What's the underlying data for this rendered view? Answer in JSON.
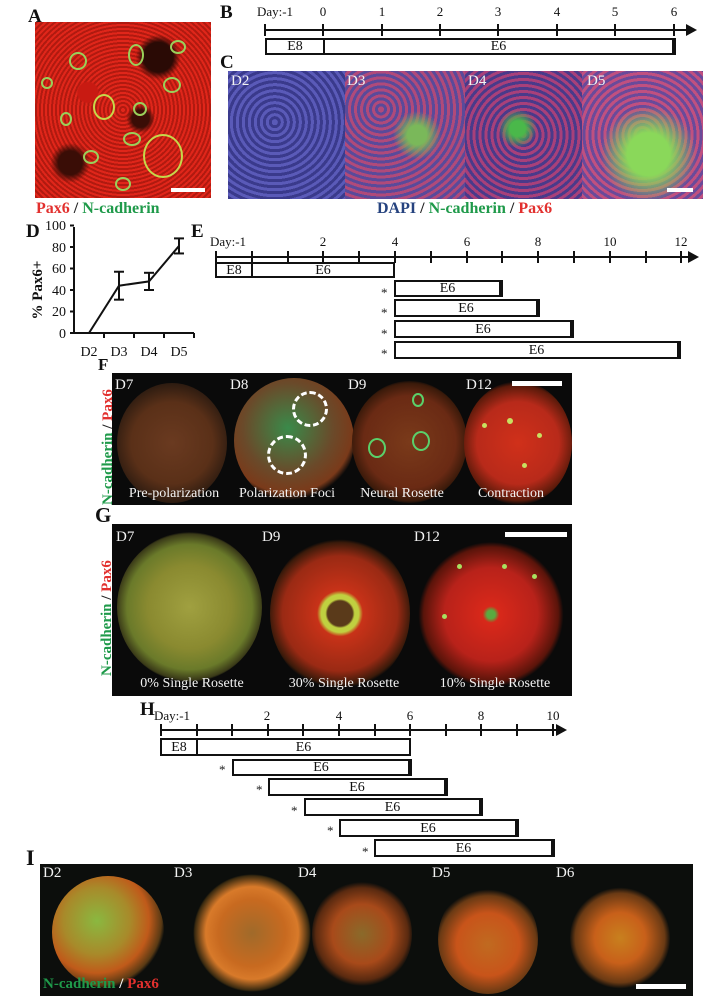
{
  "panels": {
    "A": {
      "label": "A",
      "caption": [
        {
          "text": "Pax6",
          "color": "red"
        },
        {
          "text": " / ",
          "color": "black"
        },
        {
          "text": "N-cadherin",
          "color": "green"
        }
      ]
    },
    "B": {
      "label": "B",
      "axis_ticks": [
        "Day:-1",
        "0",
        "1",
        "2",
        "3",
        "4",
        "5",
        "6"
      ],
      "bars": [
        {
          "label": "E8",
          "start": -1,
          "end": 0
        },
        {
          "label": "E6",
          "start": 0,
          "end": 6
        }
      ]
    },
    "C": {
      "label": "C",
      "tiles": [
        "D2",
        "D3",
        "D4",
        "D5"
      ],
      "caption": [
        {
          "text": "DAPI",
          "color": "blue"
        },
        {
          "text": " / ",
          "color": "black"
        },
        {
          "text": "N-cadherin",
          "color": "green"
        },
        {
          "text": " / ",
          "color": "black"
        },
        {
          "text": "Pax6",
          "color": "red"
        }
      ]
    },
    "D": {
      "label": "D"
    },
    "E": {
      "label": "E",
      "axis_ticks": [
        "Day:-1",
        "2",
        "4",
        "6",
        "8",
        "10",
        "12"
      ],
      "bars": [
        {
          "label": "E8",
          "start": -1,
          "end": 0,
          "star": false
        },
        {
          "label": "E6",
          "start": 0,
          "end": 4,
          "star": false
        },
        {
          "label": "E6",
          "start": 4,
          "end": 7,
          "star": true
        },
        {
          "label": "E6",
          "start": 4,
          "end": 8,
          "star": true
        },
        {
          "label": "E6",
          "start": 4,
          "end": 9,
          "star": true
        },
        {
          "label": "E6",
          "start": 4,
          "end": 12,
          "star": true
        }
      ],
      "star_symbol": "*"
    },
    "F": {
      "label": "F",
      "side_caption": [
        {
          "text": "N-cadherin",
          "color": "green"
        },
        {
          "text": " / ",
          "color": "black"
        },
        {
          "text": "Pax6",
          "color": "red"
        }
      ],
      "tiles": [
        {
          "day": "D7",
          "stage": "Pre-polarization"
        },
        {
          "day": "D8",
          "stage": "Polarization Foci"
        },
        {
          "day": "D9",
          "stage": "Neural Rosette"
        },
        {
          "day": "D12",
          "stage": "Contraction"
        }
      ]
    },
    "G": {
      "label": "G",
      "side_caption": [
        {
          "text": "N-cadherin",
          "color": "green"
        },
        {
          "text": " / ",
          "color": "black"
        },
        {
          "text": "Pax6",
          "color": "red"
        }
      ],
      "tiles": [
        {
          "day": "D7",
          "stage": "0% Single Rosette"
        },
        {
          "day": "D9",
          "stage": "30% Single Rosette"
        },
        {
          "day": "D12",
          "stage": "10% Single Rosette"
        }
      ]
    },
    "H": {
      "label": "H",
      "axis_ticks": [
        "Day:-1",
        "2",
        "4",
        "6",
        "8",
        "10"
      ],
      "bars": [
        {
          "label": "E8",
          "start": -1,
          "end": 0,
          "star": false
        },
        {
          "label": "E6",
          "start": 0,
          "end": 6,
          "star": false
        },
        {
          "label": "E6",
          "start": 1,
          "end": 6,
          "star": true
        },
        {
          "label": "E6",
          "start": 2,
          "end": 7,
          "star": true
        },
        {
          "label": "E6",
          "start": 3,
          "end": 8,
          "star": true
        },
        {
          "label": "E6",
          "start": 4,
          "end": 9,
          "star": true
        },
        {
          "label": "E6",
          "start": 5,
          "end": 10,
          "star": true
        }
      ],
      "star_symbol": "*"
    },
    "I": {
      "label": "I",
      "tiles": [
        "D2",
        "D3",
        "D4",
        "D5",
        "D6"
      ],
      "caption": [
        {
          "text": "N-cadherin",
          "color": "green"
        },
        {
          "text": " / ",
          "color": "white"
        },
        {
          "text": "Pax6",
          "color": "red"
        }
      ]
    }
  },
  "colors": {
    "red": "#e2302e",
    "green": "#1f9a4a",
    "blue": "#26437f",
    "axis": "#111111"
  },
  "chart_data": {
    "type": "line",
    "title": "",
    "xlabel": "",
    "ylabel": "% Pax6+",
    "categories": [
      "D2",
      "D3",
      "D4",
      "D5"
    ],
    "values": [
      0,
      44,
      48,
      81
    ],
    "error": [
      0,
      13,
      8,
      7
    ],
    "yticks": [
      0,
      20,
      40,
      60,
      80,
      100
    ],
    "ylim": [
      0,
      100
    ],
    "grid": false,
    "legend": null
  }
}
